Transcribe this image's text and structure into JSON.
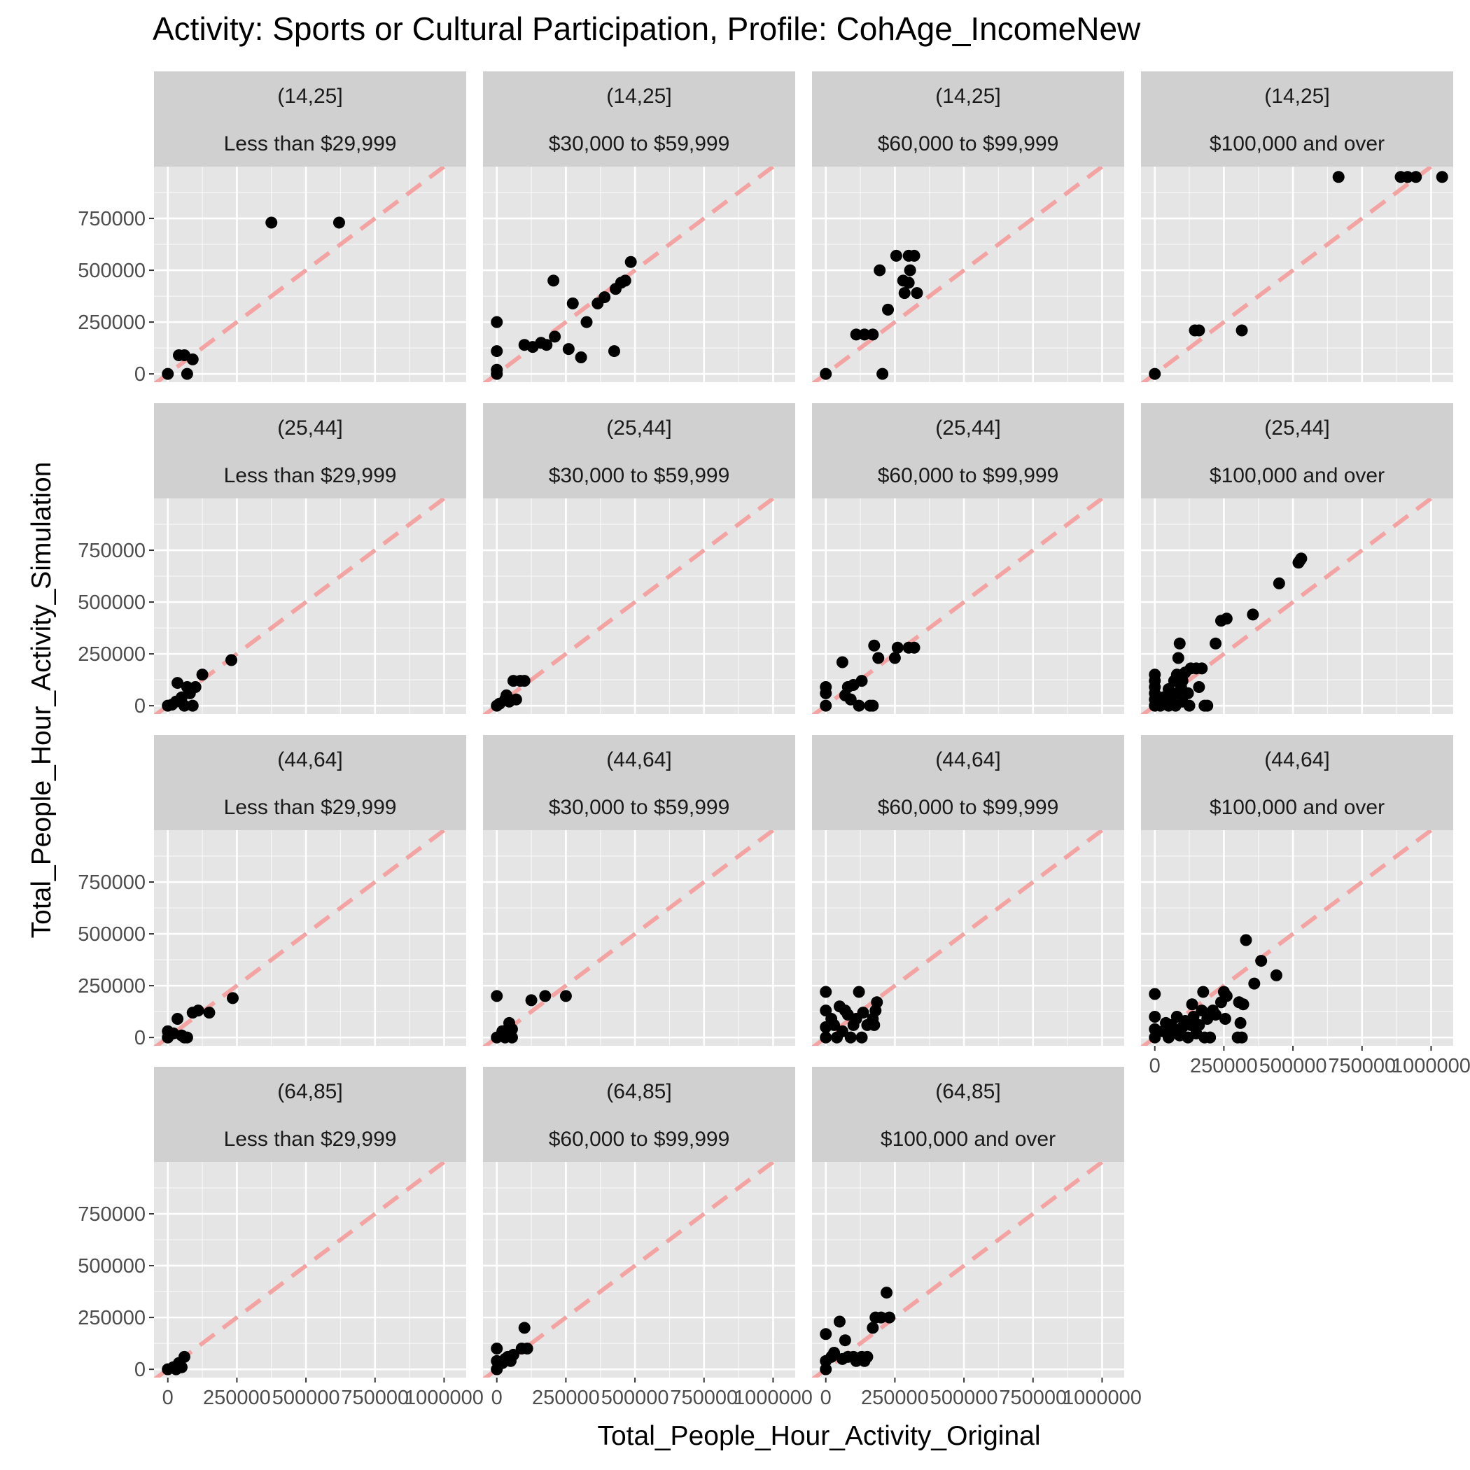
{
  "title": "Activity: Sports or Cultural Participation, Profile: CohAge_IncomeNew",
  "colors": {
    "panel_background": "#e5e5e5",
    "grid_major": "#ffffff",
    "strip_background": "#d0d0d0",
    "reference_line": "#f4a3a3",
    "points": "#000000",
    "tick_text": "#4d4d4d"
  },
  "chart_data": {
    "type": "scatter",
    "facets": "age cohort x income",
    "xlabel": "Total_People_Hour_Activity_Original",
    "ylabel": "Total_People_Hour_Activity_Simulation",
    "xlim": [
      -50000,
      1080000
    ],
    "ylim": [
      -40000,
      1000000
    ],
    "x_ticks": [
      0,
      250000,
      500000,
      750000,
      1000000
    ],
    "x_tick_labels": [
      "0",
      "250000",
      "500000",
      "750000",
      "1000000"
    ],
    "y_ticks": [
      0,
      250000,
      500000,
      750000
    ],
    "y_tick_labels": [
      "0",
      "250000",
      "500000",
      "750000"
    ],
    "reference_line": {
      "slope": 1,
      "intercept": 0,
      "style": "dashed"
    },
    "grid": true,
    "panels": [
      {
        "age": "(14,25]",
        "income": "Less than $29,999",
        "row": 0,
        "col": 0,
        "points": [
          [
            0,
            0
          ],
          [
            40000,
            90000
          ],
          [
            60000,
            90000
          ],
          [
            70000,
            0
          ],
          [
            90000,
            70000
          ],
          [
            375000,
            730000
          ],
          [
            620000,
            730000
          ]
        ]
      },
      {
        "age": "(14,25]",
        "income": "$30,000 to $59,999",
        "row": 0,
        "col": 1,
        "points": [
          [
            0,
            0
          ],
          [
            0,
            20000
          ],
          [
            0,
            110000
          ],
          [
            0,
            250000
          ],
          [
            100000,
            140000
          ],
          [
            130000,
            130000
          ],
          [
            160000,
            150000
          ],
          [
            180000,
            140000
          ],
          [
            210000,
            180000
          ],
          [
            205000,
            450000
          ],
          [
            260000,
            120000
          ],
          [
            275000,
            340000
          ],
          [
            305000,
            80000
          ],
          [
            325000,
            250000
          ],
          [
            365000,
            340000
          ],
          [
            390000,
            370000
          ],
          [
            425000,
            110000
          ],
          [
            430000,
            410000
          ],
          [
            450000,
            440000
          ],
          [
            465000,
            450000
          ],
          [
            485000,
            540000
          ]
        ]
      },
      {
        "age": "(14,25]",
        "income": "$60,000 to $99,999",
        "row": 0,
        "col": 2,
        "points": [
          [
            0,
            0
          ],
          [
            110000,
            190000
          ],
          [
            140000,
            190000
          ],
          [
            170000,
            190000
          ],
          [
            195000,
            500000
          ],
          [
            205000,
            0
          ],
          [
            225000,
            310000
          ],
          [
            255000,
            570000
          ],
          [
            280000,
            450000
          ],
          [
            285000,
            390000
          ],
          [
            300000,
            440000
          ],
          [
            300000,
            570000
          ],
          [
            305000,
            500000
          ],
          [
            320000,
            570000
          ],
          [
            330000,
            390000
          ]
        ]
      },
      {
        "age": "(14,25]",
        "income": "$100,000 and over",
        "row": 0,
        "col": 3,
        "points": [
          [
            0,
            0
          ],
          [
            145000,
            210000
          ],
          [
            160000,
            210000
          ],
          [
            315000,
            210000
          ],
          [
            665000,
            950000
          ],
          [
            890000,
            950000
          ],
          [
            915000,
            950000
          ],
          [
            945000,
            950000
          ],
          [
            1040000,
            950000
          ]
        ]
      },
      {
        "age": "(25,44]",
        "income": "Less than $29,999",
        "row": 1,
        "col": 0,
        "points": [
          [
            0,
            0
          ],
          [
            15000,
            5000
          ],
          [
            30000,
            20000
          ],
          [
            35000,
            110000
          ],
          [
            50000,
            40000
          ],
          [
            60000,
            0
          ],
          [
            70000,
            90000
          ],
          [
            80000,
            60000
          ],
          [
            90000,
            0
          ],
          [
            100000,
            90000
          ],
          [
            125000,
            150000
          ],
          [
            230000,
            220000
          ]
        ]
      },
      {
        "age": "(25,44]",
        "income": "$30,000 to $59,999",
        "row": 1,
        "col": 1,
        "points": [
          [
            0,
            0
          ],
          [
            10000,
            10000
          ],
          [
            30000,
            30000
          ],
          [
            35000,
            50000
          ],
          [
            45000,
            20000
          ],
          [
            60000,
            120000
          ],
          [
            70000,
            30000
          ],
          [
            85000,
            120000
          ],
          [
            100000,
            120000
          ]
        ]
      },
      {
        "age": "(25,44]",
        "income": "$60,000 to $99,999",
        "row": 1,
        "col": 2,
        "points": [
          [
            0,
            0
          ],
          [
            0,
            60000
          ],
          [
            0,
            90000
          ],
          [
            60000,
            210000
          ],
          [
            70000,
            50000
          ],
          [
            80000,
            90000
          ],
          [
            90000,
            30000
          ],
          [
            100000,
            100000
          ],
          [
            120000,
            0
          ],
          [
            130000,
            120000
          ],
          [
            160000,
            0
          ],
          [
            170000,
            0
          ],
          [
            175000,
            290000
          ],
          [
            190000,
            230000
          ],
          [
            250000,
            230000
          ],
          [
            260000,
            280000
          ],
          [
            300000,
            280000
          ],
          [
            320000,
            280000
          ]
        ]
      },
      {
        "age": "(25,44]",
        "income": "$100,000 and over",
        "row": 1,
        "col": 3,
        "points": [
          [
            0,
            0
          ],
          [
            0,
            30000
          ],
          [
            0,
            60000
          ],
          [
            0,
            90000
          ],
          [
            0,
            120000
          ],
          [
            0,
            150000
          ],
          [
            20000,
            0
          ],
          [
            30000,
            40000
          ],
          [
            40000,
            20000
          ],
          [
            50000,
            0
          ],
          [
            50000,
            80000
          ],
          [
            60000,
            40000
          ],
          [
            70000,
            120000
          ],
          [
            75000,
            0
          ],
          [
            80000,
            150000
          ],
          [
            80000,
            60000
          ],
          [
            85000,
            230000
          ],
          [
            90000,
            300000
          ],
          [
            95000,
            90000
          ],
          [
            100000,
            120000
          ],
          [
            100000,
            20000
          ],
          [
            110000,
            160000
          ],
          [
            120000,
            60000
          ],
          [
            125000,
            0
          ],
          [
            130000,
            180000
          ],
          [
            150000,
            180000
          ],
          [
            160000,
            90000
          ],
          [
            170000,
            180000
          ],
          [
            180000,
            0
          ],
          [
            190000,
            0
          ],
          [
            220000,
            300000
          ],
          [
            240000,
            410000
          ],
          [
            260000,
            420000
          ],
          [
            355000,
            440000
          ],
          [
            450000,
            590000
          ],
          [
            520000,
            690000
          ],
          [
            525000,
            700000
          ],
          [
            530000,
            710000
          ]
        ]
      },
      {
        "age": "(44,64]",
        "income": "Less than $29,999",
        "row": 2,
        "col": 0,
        "points": [
          [
            0,
            0
          ],
          [
            0,
            30000
          ],
          [
            20000,
            20000
          ],
          [
            35000,
            90000
          ],
          [
            50000,
            10000
          ],
          [
            60000,
            0
          ],
          [
            70000,
            0
          ],
          [
            90000,
            120000
          ],
          [
            110000,
            130000
          ],
          [
            150000,
            120000
          ],
          [
            235000,
            190000
          ]
        ]
      },
      {
        "age": "(44,64]",
        "income": "$30,000 to $59,999",
        "row": 2,
        "col": 1,
        "points": [
          [
            0,
            0
          ],
          [
            0,
            200000
          ],
          [
            20000,
            30000
          ],
          [
            30000,
            0
          ],
          [
            40000,
            40000
          ],
          [
            45000,
            70000
          ],
          [
            55000,
            40000
          ],
          [
            55000,
            0
          ],
          [
            125000,
            180000
          ],
          [
            175000,
            200000
          ],
          [
            250000,
            200000
          ]
        ]
      },
      {
        "age": "(44,64]",
        "income": "$60,000 to $99,999",
        "row": 2,
        "col": 2,
        "points": [
          [
            0,
            0
          ],
          [
            0,
            50000
          ],
          [
            0,
            130000
          ],
          [
            0,
            220000
          ],
          [
            20000,
            90000
          ],
          [
            30000,
            60000
          ],
          [
            40000,
            0
          ],
          [
            50000,
            150000
          ],
          [
            60000,
            30000
          ],
          [
            70000,
            130000
          ],
          [
            80000,
            110000
          ],
          [
            90000,
            0
          ],
          [
            100000,
            60000
          ],
          [
            110000,
            90000
          ],
          [
            120000,
            220000
          ],
          [
            130000,
            0
          ],
          [
            135000,
            120000
          ],
          [
            150000,
            60000
          ],
          [
            170000,
            90000
          ],
          [
            175000,
            60000
          ],
          [
            180000,
            130000
          ],
          [
            185000,
            170000
          ]
        ]
      },
      {
        "age": "(44,64]",
        "income": "$100,000 and over",
        "row": 2,
        "col": 3,
        "points": [
          [
            0,
            0
          ],
          [
            0,
            40000
          ],
          [
            0,
            100000
          ],
          [
            0,
            210000
          ],
          [
            30000,
            30000
          ],
          [
            40000,
            70000
          ],
          [
            50000,
            0
          ],
          [
            60000,
            60000
          ],
          [
            70000,
            30000
          ],
          [
            80000,
            100000
          ],
          [
            90000,
            10000
          ],
          [
            100000,
            50000
          ],
          [
            110000,
            80000
          ],
          [
            120000,
            0
          ],
          [
            130000,
            60000
          ],
          [
            135000,
            160000
          ],
          [
            140000,
            100000
          ],
          [
            150000,
            20000
          ],
          [
            160000,
            60000
          ],
          [
            170000,
            130000
          ],
          [
            175000,
            220000
          ],
          [
            180000,
            0
          ],
          [
            190000,
            90000
          ],
          [
            200000,
            0
          ],
          [
            210000,
            130000
          ],
          [
            220000,
            110000
          ],
          [
            240000,
            170000
          ],
          [
            250000,
            220000
          ],
          [
            255000,
            90000
          ],
          [
            260000,
            200000
          ],
          [
            300000,
            0
          ],
          [
            305000,
            170000
          ],
          [
            310000,
            70000
          ],
          [
            315000,
            0
          ],
          [
            320000,
            160000
          ],
          [
            330000,
            470000
          ],
          [
            360000,
            260000
          ],
          [
            385000,
            370000
          ],
          [
            440000,
            300000
          ]
        ]
      },
      {
        "age": "(64,85]",
        "income": "Less than $29,999",
        "row": 3,
        "col": 0,
        "points": [
          [
            0,
            0
          ],
          [
            20000,
            10000
          ],
          [
            30000,
            0
          ],
          [
            40000,
            30000
          ],
          [
            50000,
            10000
          ],
          [
            60000,
            60000
          ]
        ]
      },
      {
        "age": "(64,85]",
        "income": "$60,000 to $99,999",
        "row": 3,
        "col": 1,
        "points": [
          [
            0,
            0
          ],
          [
            0,
            40000
          ],
          [
            0,
            100000
          ],
          [
            20000,
            30000
          ],
          [
            30000,
            50000
          ],
          [
            40000,
            60000
          ],
          [
            50000,
            40000
          ],
          [
            60000,
            70000
          ],
          [
            90000,
            100000
          ],
          [
            100000,
            200000
          ],
          [
            110000,
            100000
          ]
        ]
      },
      {
        "age": "(64,85]",
        "income": "$100,000 and over",
        "row": 3,
        "col": 2,
        "points": [
          [
            0,
            0
          ],
          [
            0,
            40000
          ],
          [
            0,
            170000
          ],
          [
            20000,
            60000
          ],
          [
            30000,
            80000
          ],
          [
            50000,
            230000
          ],
          [
            60000,
            50000
          ],
          [
            70000,
            140000
          ],
          [
            80000,
            60000
          ],
          [
            100000,
            60000
          ],
          [
            110000,
            40000
          ],
          [
            130000,
            60000
          ],
          [
            140000,
            40000
          ],
          [
            150000,
            60000
          ],
          [
            170000,
            200000
          ],
          [
            180000,
            250000
          ],
          [
            200000,
            250000
          ],
          [
            220000,
            370000
          ],
          [
            230000,
            250000
          ]
        ]
      }
    ]
  }
}
